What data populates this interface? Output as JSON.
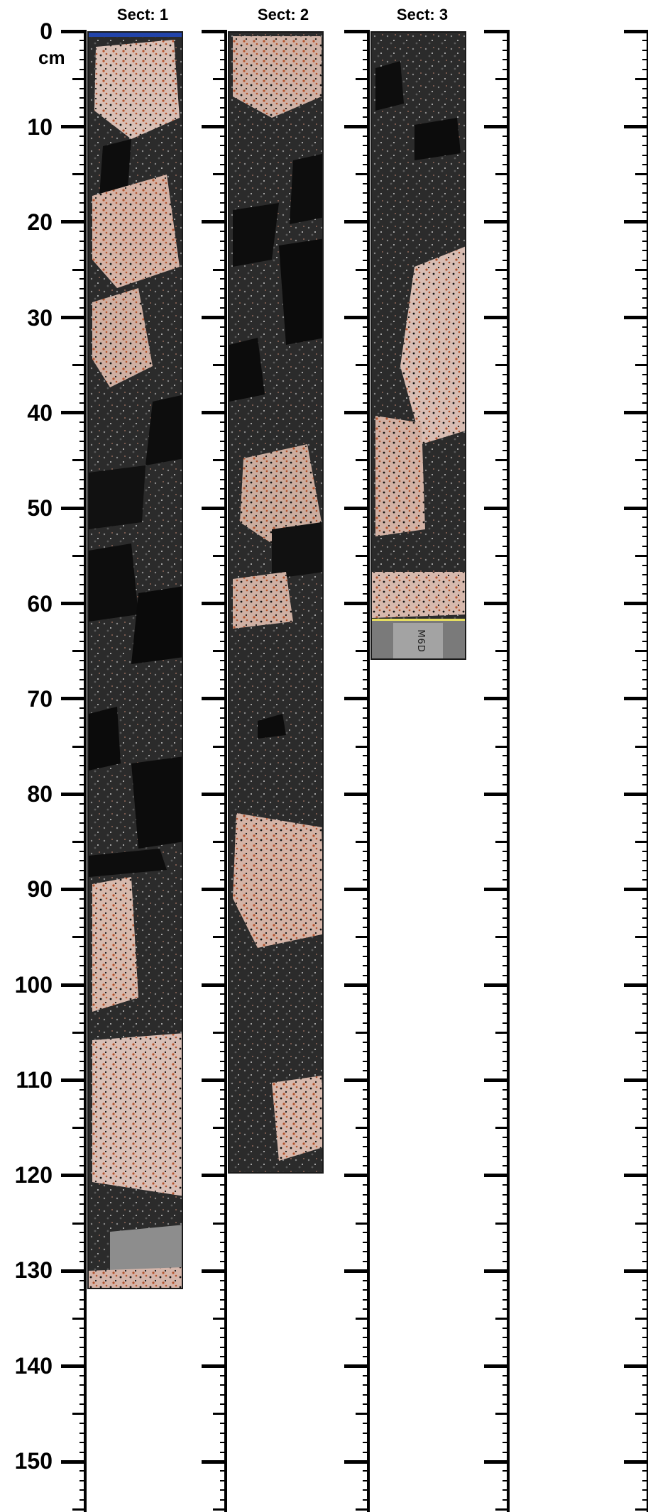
{
  "scale": {
    "unit": "cm",
    "labels": [
      "0",
      "10",
      "20",
      "30",
      "40",
      "50",
      "60",
      "70",
      "80",
      "90",
      "100",
      "110",
      "120",
      "130",
      "140",
      "150"
    ]
  },
  "sections": [
    {
      "title": "Sect: 1",
      "length_cm": 132
    },
    {
      "title": "Sect: 2",
      "length_cm": 120
    },
    {
      "title": "Sect: 3",
      "length_cm": 66,
      "label_text": "M6D"
    }
  ],
  "colors": {
    "matrix": "#2b2b2b",
    "dark_clast": "#0d0d0d",
    "granite_pink": "#d9b9b0",
    "granite_orange": "#b3532d",
    "ink": "#000000"
  }
}
